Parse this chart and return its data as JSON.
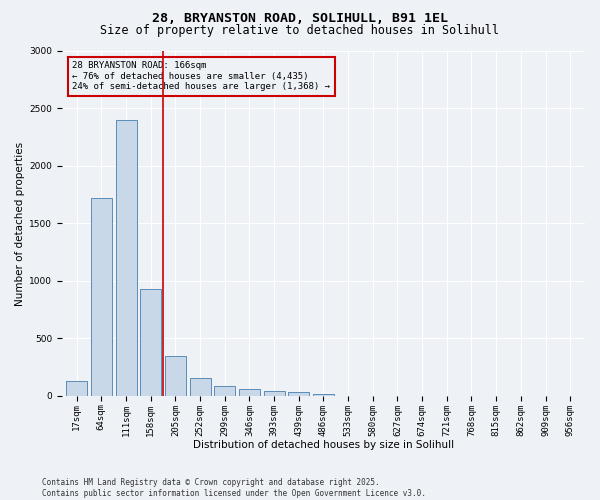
{
  "title1": "28, BRYANSTON ROAD, SOLIHULL, B91 1EL",
  "title2": "Size of property relative to detached houses in Solihull",
  "xlabel": "Distribution of detached houses by size in Solihull",
  "ylabel": "Number of detached properties",
  "categories": [
    "17sqm",
    "64sqm",
    "111sqm",
    "158sqm",
    "205sqm",
    "252sqm",
    "299sqm",
    "346sqm",
    "393sqm",
    "439sqm",
    "486sqm",
    "533sqm",
    "580sqm",
    "627sqm",
    "674sqm",
    "721sqm",
    "768sqm",
    "815sqm",
    "862sqm",
    "909sqm",
    "956sqm"
  ],
  "values": [
    130,
    1720,
    2400,
    930,
    350,
    155,
    90,
    60,
    45,
    30,
    20,
    0,
    0,
    0,
    0,
    0,
    0,
    0,
    0,
    0,
    0
  ],
  "bar_color": "#c8d8e8",
  "bar_edge_color": "#5b8db8",
  "vline_color": "#cc0000",
  "annotation_title": "28 BRYANSTON ROAD: 166sqm",
  "annotation_line1": "← 76% of detached houses are smaller (4,435)",
  "annotation_line2": "24% of semi-detached houses are larger (1,368) →",
  "annotation_box_color": "#cc0000",
  "ylim": [
    0,
    3000
  ],
  "yticks": [
    0,
    500,
    1000,
    1500,
    2000,
    2500,
    3000
  ],
  "footer1": "Contains HM Land Registry data © Crown copyright and database right 2025.",
  "footer2": "Contains public sector information licensed under the Open Government Licence v3.0.",
  "bg_color": "#eef2f7",
  "grid_color": "#ffffff",
  "title1_fontsize": 9.5,
  "title2_fontsize": 8.5,
  "axis_label_fontsize": 7.5,
  "tick_fontsize": 6.5,
  "annotation_fontsize": 6.5,
  "footer_fontsize": 5.5
}
